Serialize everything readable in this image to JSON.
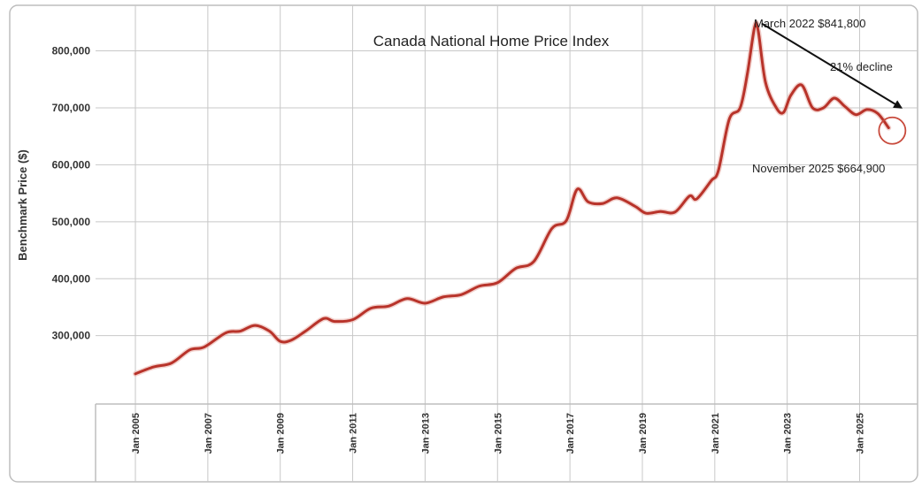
{
  "chart_data": {
    "type": "line",
    "title": "Canada National Home Price Index",
    "xlabel": "",
    "ylabel": "Benchmark Price ($)",
    "ylim": [
      180000,
      880000
    ],
    "xlim": [
      2003.9,
      2026.6
    ],
    "y_ticks": [
      300000,
      400000,
      500000,
      600000,
      700000,
      800000
    ],
    "y_tick_labels": [
      "300,000",
      "400,000",
      "500,000",
      "600,000",
      "700,000",
      "800,000"
    ],
    "x_ticks": [
      2005,
      2007,
      2009,
      2011,
      2013,
      2015,
      2017,
      2019,
      2021,
      2023,
      2025
    ],
    "x_tick_labels": [
      "Jan 2005",
      "Jan 2007",
      "Jan 2009",
      "Jan 2011",
      "Jan 2013",
      "Jan 2015",
      "Jan 2017",
      "Jan 2019",
      "Jan 2021",
      "Jan 2023",
      "Jan 2025"
    ],
    "grid": true,
    "series": [
      {
        "name": "Benchmark Price",
        "color": "#b8332a",
        "x": [
          2005.0,
          2005.5,
          2006.0,
          2006.5,
          2006.9,
          2007.5,
          2007.9,
          2008.3,
          2008.7,
          2009.0,
          2009.3,
          2009.7,
          2010.2,
          2010.5,
          2011.0,
          2011.5,
          2012.0,
          2012.5,
          2013.0,
          2013.5,
          2014.0,
          2014.5,
          2015.0,
          2015.5,
          2016.0,
          2016.5,
          2016.9,
          2017.2,
          2017.5,
          2017.9,
          2018.3,
          2018.8,
          2019.1,
          2019.5,
          2019.9,
          2020.3,
          2020.5,
          2020.9,
          2021.1,
          2021.4,
          2021.7,
          2021.9,
          2022.1,
          2022.2,
          2022.4,
          2022.7,
          2022.9,
          2023.1,
          2023.4,
          2023.7,
          2024.0,
          2024.3,
          2024.6,
          2024.9,
          2025.2,
          2025.5,
          2025.8
        ],
        "values": [
          233000,
          245000,
          252000,
          275000,
          280000,
          305000,
          308000,
          318000,
          308000,
          290000,
          292000,
          308000,
          330000,
          325000,
          328000,
          348000,
          352000,
          365000,
          357000,
          368000,
          372000,
          387000,
          393000,
          418000,
          430000,
          488000,
          502000,
          557000,
          535000,
          532000,
          542000,
          527000,
          515000,
          518000,
          517000,
          545000,
          540000,
          572000,
          590000,
          680000,
          700000,
          760000,
          841800,
          835000,
          745000,
          700000,
          692000,
          722000,
          740000,
          700000,
          700000,
          717000,
          702000,
          688000,
          697000,
          690000,
          664900
        ]
      }
    ],
    "annotations": {
      "peak_label": "March 2022  $841,800",
      "trough_label": "November 2025  $664,900",
      "decline_label": "21% decline",
      "peak": {
        "x": 2022.2,
        "y": 841800
      },
      "trough": {
        "x": 2025.9,
        "y": 660000
      }
    }
  }
}
